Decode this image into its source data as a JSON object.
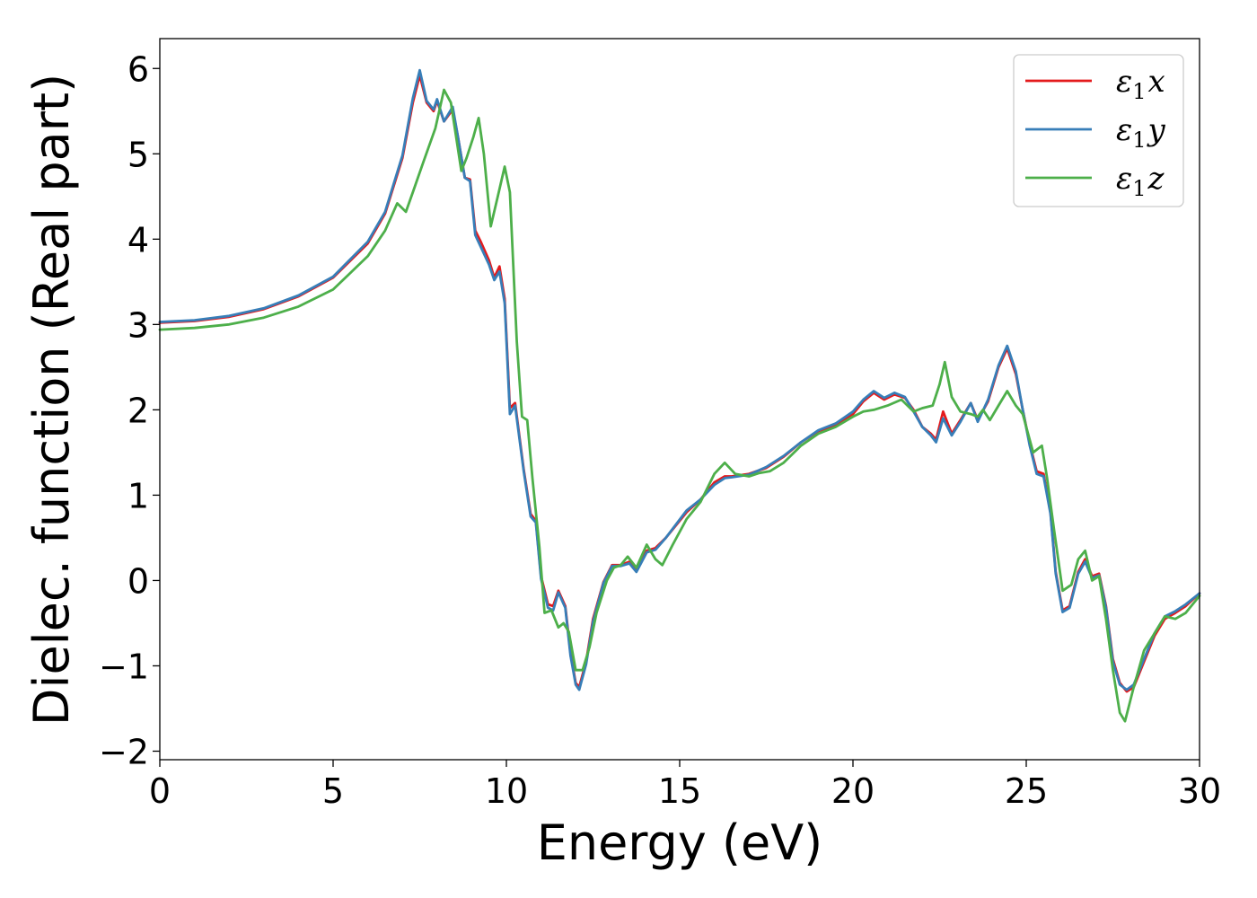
{
  "chart_data": {
    "type": "line",
    "xlabel": "Energy (eV)",
    "ylabel": "Dielec. function (Real part)",
    "xlim": [
      0,
      30
    ],
    "ylim": [
      -2.1,
      6.35
    ],
    "xticks": [
      0,
      5,
      10,
      15,
      20,
      25,
      30
    ],
    "yticks": [
      -2,
      -1,
      0,
      1,
      2,
      3,
      4,
      5,
      6
    ],
    "ytick_labels": [
      "−2",
      "−1",
      "0",
      "1",
      "2",
      "3",
      "4",
      "5",
      "6"
    ],
    "grid": false,
    "legend_position": "top-right",
    "series": [
      {
        "name": "ε₁x",
        "legend_main": "ε",
        "legend_sub": "1",
        "legend_var": "x",
        "color": "#e41a1c",
        "points": [
          [
            0,
            3.02
          ],
          [
            1,
            3.04
          ],
          [
            2,
            3.09
          ],
          [
            3,
            3.18
          ],
          [
            4,
            3.33
          ],
          [
            5,
            3.55
          ],
          [
            6,
            3.95
          ],
          [
            6.5,
            4.3
          ],
          [
            7,
            4.95
          ],
          [
            7.3,
            5.6
          ],
          [
            7.5,
            5.92
          ],
          [
            7.7,
            5.6
          ],
          [
            7.9,
            5.5
          ],
          [
            8.0,
            5.62
          ],
          [
            8.2,
            5.38
          ],
          [
            8.45,
            5.52
          ],
          [
            8.6,
            5.2
          ],
          [
            8.8,
            4.72
          ],
          [
            8.95,
            4.7
          ],
          [
            9.1,
            4.1
          ],
          [
            9.25,
            3.98
          ],
          [
            9.5,
            3.75
          ],
          [
            9.65,
            3.55
          ],
          [
            9.8,
            3.68
          ],
          [
            9.95,
            3.3
          ],
          [
            10.1,
            2.02
          ],
          [
            10.25,
            2.08
          ],
          [
            10.5,
            1.3
          ],
          [
            10.7,
            0.78
          ],
          [
            10.85,
            0.7
          ],
          [
            11.0,
            0.05
          ],
          [
            11.2,
            -0.28
          ],
          [
            11.35,
            -0.3
          ],
          [
            11.5,
            -0.12
          ],
          [
            11.7,
            -0.3
          ],
          [
            11.85,
            -0.85
          ],
          [
            12.0,
            -1.2
          ],
          [
            12.1,
            -1.25
          ],
          [
            12.3,
            -0.95
          ],
          [
            12.5,
            -0.45
          ],
          [
            12.8,
            -0.02
          ],
          [
            13.05,
            0.18
          ],
          [
            13.3,
            0.18
          ],
          [
            13.55,
            0.22
          ],
          [
            13.75,
            0.12
          ],
          [
            14.05,
            0.35
          ],
          [
            14.3,
            0.38
          ],
          [
            14.6,
            0.5
          ],
          [
            15.2,
            0.8
          ],
          [
            15.6,
            0.95
          ],
          [
            16.0,
            1.15
          ],
          [
            16.3,
            1.22
          ],
          [
            16.5,
            1.22
          ],
          [
            17.0,
            1.25
          ],
          [
            17.5,
            1.32
          ],
          [
            18.0,
            1.45
          ],
          [
            18.5,
            1.62
          ],
          [
            19.0,
            1.75
          ],
          [
            19.5,
            1.82
          ],
          [
            20.0,
            1.95
          ],
          [
            20.3,
            2.1
          ],
          [
            20.6,
            2.2
          ],
          [
            20.9,
            2.12
          ],
          [
            21.2,
            2.18
          ],
          [
            21.5,
            2.14
          ],
          [
            21.75,
            2.0
          ],
          [
            22.0,
            1.8
          ],
          [
            22.25,
            1.72
          ],
          [
            22.4,
            1.65
          ],
          [
            22.6,
            1.98
          ],
          [
            22.85,
            1.72
          ],
          [
            23.1,
            1.88
          ],
          [
            23.4,
            2.08
          ],
          [
            23.6,
            1.88
          ],
          [
            23.9,
            2.1
          ],
          [
            24.2,
            2.5
          ],
          [
            24.45,
            2.72
          ],
          [
            24.7,
            2.42
          ],
          [
            24.9,
            2.0
          ],
          [
            25.1,
            1.6
          ],
          [
            25.3,
            1.28
          ],
          [
            25.5,
            1.25
          ],
          [
            25.7,
            0.8
          ],
          [
            25.85,
            0.1
          ],
          [
            26.05,
            -0.35
          ],
          [
            26.25,
            -0.3
          ],
          [
            26.5,
            0.1
          ],
          [
            26.7,
            0.25
          ],
          [
            26.9,
            0.05
          ],
          [
            27.1,
            0.08
          ],
          [
            27.3,
            -0.3
          ],
          [
            27.5,
            -0.92
          ],
          [
            27.7,
            -1.2
          ],
          [
            27.9,
            -1.3
          ],
          [
            28.1,
            -1.25
          ],
          [
            28.4,
            -0.95
          ],
          [
            28.7,
            -0.65
          ],
          [
            29.0,
            -0.45
          ],
          [
            29.3,
            -0.38
          ],
          [
            29.6,
            -0.3
          ],
          [
            30.0,
            -0.15
          ]
        ]
      },
      {
        "name": "ε₁y",
        "legend_main": "ε",
        "legend_sub": "1",
        "legend_var": "y",
        "color": "#377eb8",
        "points": [
          [
            0,
            3.03
          ],
          [
            1,
            3.05
          ],
          [
            2,
            3.1
          ],
          [
            3,
            3.19
          ],
          [
            4,
            3.34
          ],
          [
            5,
            3.56
          ],
          [
            6,
            3.97
          ],
          [
            6.5,
            4.32
          ],
          [
            7,
            4.98
          ],
          [
            7.3,
            5.65
          ],
          [
            7.5,
            5.98
          ],
          [
            7.7,
            5.62
          ],
          [
            7.9,
            5.52
          ],
          [
            8.0,
            5.64
          ],
          [
            8.2,
            5.38
          ],
          [
            8.45,
            5.55
          ],
          [
            8.6,
            5.2
          ],
          [
            8.8,
            4.72
          ],
          [
            8.95,
            4.68
          ],
          [
            9.1,
            4.05
          ],
          [
            9.25,
            3.92
          ],
          [
            9.5,
            3.7
          ],
          [
            9.65,
            3.52
          ],
          [
            9.8,
            3.62
          ],
          [
            9.95,
            3.25
          ],
          [
            10.1,
            1.95
          ],
          [
            10.25,
            2.05
          ],
          [
            10.5,
            1.28
          ],
          [
            10.7,
            0.75
          ],
          [
            10.85,
            0.68
          ],
          [
            11.0,
            0.02
          ],
          [
            11.2,
            -0.32
          ],
          [
            11.35,
            -0.35
          ],
          [
            11.5,
            -0.14
          ],
          [
            11.7,
            -0.32
          ],
          [
            11.85,
            -0.88
          ],
          [
            12.0,
            -1.22
          ],
          [
            12.1,
            -1.28
          ],
          [
            12.3,
            -0.98
          ],
          [
            12.5,
            -0.48
          ],
          [
            12.8,
            -0.03
          ],
          [
            13.05,
            0.17
          ],
          [
            13.3,
            0.17
          ],
          [
            13.55,
            0.2
          ],
          [
            13.75,
            0.1
          ],
          [
            14.05,
            0.33
          ],
          [
            14.3,
            0.36
          ],
          [
            14.6,
            0.5
          ],
          [
            15.2,
            0.82
          ],
          [
            15.6,
            0.95
          ],
          [
            16.0,
            1.12
          ],
          [
            16.3,
            1.2
          ],
          [
            16.5,
            1.21
          ],
          [
            17.0,
            1.24
          ],
          [
            17.5,
            1.33
          ],
          [
            18.0,
            1.46
          ],
          [
            18.5,
            1.62
          ],
          [
            19.0,
            1.76
          ],
          [
            19.5,
            1.84
          ],
          [
            20.0,
            1.98
          ],
          [
            20.3,
            2.12
          ],
          [
            20.6,
            2.22
          ],
          [
            20.9,
            2.14
          ],
          [
            21.2,
            2.2
          ],
          [
            21.5,
            2.15
          ],
          [
            21.75,
            1.98
          ],
          [
            22.0,
            1.8
          ],
          [
            22.25,
            1.7
          ],
          [
            22.4,
            1.62
          ],
          [
            22.6,
            1.9
          ],
          [
            22.85,
            1.7
          ],
          [
            23.1,
            1.86
          ],
          [
            23.4,
            2.08
          ],
          [
            23.6,
            1.86
          ],
          [
            23.9,
            2.12
          ],
          [
            24.2,
            2.52
          ],
          [
            24.45,
            2.75
          ],
          [
            24.7,
            2.45
          ],
          [
            24.9,
            2.0
          ],
          [
            25.1,
            1.58
          ],
          [
            25.3,
            1.25
          ],
          [
            25.5,
            1.22
          ],
          [
            25.7,
            0.78
          ],
          [
            25.85,
            0.08
          ],
          [
            26.05,
            -0.37
          ],
          [
            26.25,
            -0.32
          ],
          [
            26.5,
            0.08
          ],
          [
            26.7,
            0.22
          ],
          [
            26.9,
            0.03
          ],
          [
            27.1,
            0.06
          ],
          [
            27.3,
            -0.32
          ],
          [
            27.5,
            -0.95
          ],
          [
            27.7,
            -1.22
          ],
          [
            27.9,
            -1.28
          ],
          [
            28.1,
            -1.22
          ],
          [
            28.4,
            -0.92
          ],
          [
            28.7,
            -0.62
          ],
          [
            29.0,
            -0.42
          ],
          [
            29.3,
            -0.36
          ],
          [
            29.6,
            -0.28
          ],
          [
            30.0,
            -0.15
          ]
        ]
      },
      {
        "name": "ε₁z",
        "legend_main": "ε",
        "legend_sub": "1",
        "legend_var": "z",
        "color": "#4daf4a",
        "points": [
          [
            0,
            2.94
          ],
          [
            1,
            2.96
          ],
          [
            2,
            3.0
          ],
          [
            3,
            3.08
          ],
          [
            4,
            3.21
          ],
          [
            5,
            3.41
          ],
          [
            6,
            3.8
          ],
          [
            6.5,
            4.1
          ],
          [
            6.85,
            4.42
          ],
          [
            7.1,
            4.32
          ],
          [
            7.3,
            4.55
          ],
          [
            7.6,
            4.9
          ],
          [
            7.95,
            5.3
          ],
          [
            8.2,
            5.75
          ],
          [
            8.4,
            5.6
          ],
          [
            8.55,
            5.2
          ],
          [
            8.7,
            4.8
          ],
          [
            8.85,
            4.95
          ],
          [
            9.05,
            5.2
          ],
          [
            9.2,
            5.42
          ],
          [
            9.35,
            5.0
          ],
          [
            9.55,
            4.15
          ],
          [
            9.75,
            4.5
          ],
          [
            9.95,
            4.85
          ],
          [
            10.1,
            4.55
          ],
          [
            10.3,
            2.8
          ],
          [
            10.45,
            1.92
          ],
          [
            10.6,
            1.88
          ],
          [
            10.75,
            1.2
          ],
          [
            10.95,
            0.4
          ],
          [
            11.1,
            -0.38
          ],
          [
            11.3,
            -0.35
          ],
          [
            11.5,
            -0.55
          ],
          [
            11.65,
            -0.5
          ],
          [
            11.8,
            -0.6
          ],
          [
            12.0,
            -1.05
          ],
          [
            12.2,
            -1.05
          ],
          [
            12.4,
            -0.78
          ],
          [
            12.6,
            -0.38
          ],
          [
            12.9,
            0.0
          ],
          [
            13.1,
            0.15
          ],
          [
            13.3,
            0.18
          ],
          [
            13.5,
            0.28
          ],
          [
            13.75,
            0.15
          ],
          [
            14.05,
            0.42
          ],
          [
            14.3,
            0.25
          ],
          [
            14.5,
            0.18
          ],
          [
            14.8,
            0.42
          ],
          [
            15.2,
            0.72
          ],
          [
            15.6,
            0.92
          ],
          [
            16.0,
            1.25
          ],
          [
            16.3,
            1.38
          ],
          [
            16.6,
            1.25
          ],
          [
            17.0,
            1.22
          ],
          [
            17.3,
            1.26
          ],
          [
            17.6,
            1.28
          ],
          [
            18.0,
            1.38
          ],
          [
            18.5,
            1.58
          ],
          [
            19.0,
            1.72
          ],
          [
            19.5,
            1.8
          ],
          [
            20.0,
            1.92
          ],
          [
            20.3,
            1.98
          ],
          [
            20.6,
            2.0
          ],
          [
            21.0,
            2.05
          ],
          [
            21.4,
            2.12
          ],
          [
            21.75,
            1.98
          ],
          [
            22.0,
            2.02
          ],
          [
            22.3,
            2.05
          ],
          [
            22.5,
            2.3
          ],
          [
            22.65,
            2.56
          ],
          [
            22.85,
            2.15
          ],
          [
            23.1,
            1.98
          ],
          [
            23.4,
            1.95
          ],
          [
            23.6,
            1.92
          ],
          [
            23.75,
            2.0
          ],
          [
            23.95,
            1.88
          ],
          [
            24.2,
            2.05
          ],
          [
            24.45,
            2.22
          ],
          [
            24.7,
            2.05
          ],
          [
            24.9,
            1.95
          ],
          [
            25.2,
            1.5
          ],
          [
            25.45,
            1.58
          ],
          [
            25.6,
            1.2
          ],
          [
            25.8,
            0.6
          ],
          [
            26.05,
            -0.12
          ],
          [
            26.3,
            -0.05
          ],
          [
            26.5,
            0.25
          ],
          [
            26.7,
            0.35
          ],
          [
            26.9,
            0.0
          ],
          [
            27.1,
            0.05
          ],
          [
            27.3,
            -0.45
          ],
          [
            27.5,
            -1.05
          ],
          [
            27.7,
            -1.55
          ],
          [
            27.85,
            -1.65
          ],
          [
            28.1,
            -1.25
          ],
          [
            28.4,
            -0.82
          ],
          [
            28.7,
            -0.62
          ],
          [
            29.0,
            -0.42
          ],
          [
            29.3,
            -0.45
          ],
          [
            29.6,
            -0.38
          ],
          [
            30.0,
            -0.18
          ]
        ]
      }
    ]
  }
}
